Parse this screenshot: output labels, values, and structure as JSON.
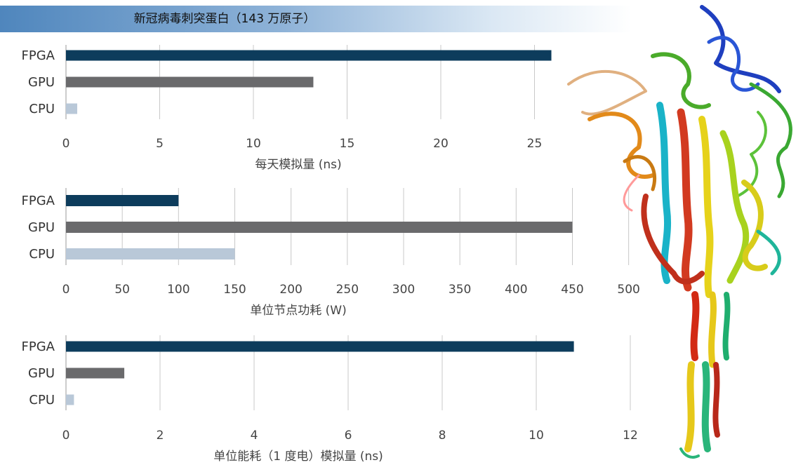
{
  "title": "新冠病毒刺突蛋白（143 万原子）",
  "colors": {
    "FPGA": "#0d3c5c",
    "GPU": "#6a6a6c",
    "CPU": "#b9c8d8",
    "grid": "#c8c8c8"
  },
  "chart_data": [
    {
      "type": "bar",
      "orientation": "horizontal",
      "categories": [
        "FPGA",
        "GPU",
        "CPU"
      ],
      "values": [
        25.9,
        13.2,
        0.6
      ],
      "xlabel": "每天模拟量 (ns)",
      "xlim": [
        0,
        30
      ],
      "ticks": [
        0,
        5,
        10,
        15,
        20,
        25
      ],
      "grid": true
    },
    {
      "type": "bar",
      "orientation": "horizontal",
      "categories": [
        "FPGA",
        "GPU",
        "CPU"
      ],
      "values": [
        100,
        450,
        150
      ],
      "xlabel": "单位节点功耗 (W)",
      "xlim": [
        0,
        500
      ],
      "ticks": [
        0,
        50,
        100,
        150,
        200,
        250,
        300,
        350,
        400,
        450,
        500
      ],
      "grid": true
    },
    {
      "type": "bar",
      "orientation": "horizontal",
      "categories": [
        "FPGA",
        "GPU",
        "CPU"
      ],
      "values": [
        10.8,
        1.24,
        0.17
      ],
      "xlabel": "单位能耗（1 度电）模拟量 (ns)",
      "xlim": [
        0,
        12
      ],
      "ticks": [
        0,
        2,
        4,
        6,
        8,
        10,
        12
      ],
      "grid": true
    }
  ]
}
